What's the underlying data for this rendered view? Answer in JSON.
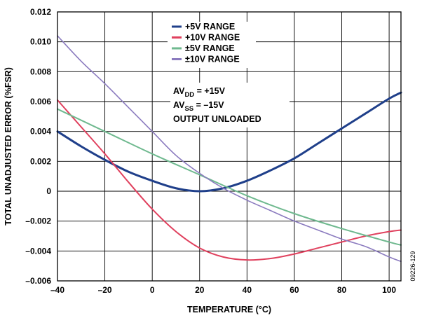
{
  "chart_data": {
    "type": "line",
    "title": "",
    "xlabel": "TEMPERATURE (°C)",
    "ylabel": "TOTAL UNADJUSTED ERROR (%FSR)",
    "xlim": [
      -40,
      105
    ],
    "ylim": [
      -0.006,
      0.012
    ],
    "x_ticks": [
      -40,
      -20,
      0,
      20,
      40,
      60,
      80,
      100
    ],
    "x_tick_labels": [
      "–40",
      "–20",
      "0",
      "20",
      "40",
      "60",
      "80",
      "100"
    ],
    "y_ticks": [
      0.012,
      0.01,
      0.008,
      0.006,
      0.004,
      0.002,
      0,
      -0.002,
      -0.004,
      -0.006
    ],
    "y_tick_labels": [
      "0.012",
      "0.010",
      "0.008",
      "0.006",
      "0.004",
      "0.002",
      "0",
      "–0.002",
      "–0.004",
      "–0.006"
    ],
    "grid": true,
    "legend_position": "top-center",
    "series": [
      {
        "name": "+5V RANGE",
        "color": "#1f3f8a",
        "x": [
          -40,
          -30,
          -20,
          -10,
          0,
          10,
          20,
          30,
          40,
          50,
          60,
          70,
          80,
          90,
          100,
          105
        ],
        "y": [
          0.004,
          0.003,
          0.0021,
          0.0013,
          0.0007,
          0.0002,
          0.0,
          0.0002,
          0.0007,
          0.0014,
          0.0022,
          0.0032,
          0.0042,
          0.0052,
          0.0062,
          0.0066
        ]
      },
      {
        "name": "+10V RANGE",
        "color": "#e0415e",
        "x": [
          -40,
          -30,
          -20,
          -10,
          0,
          10,
          20,
          30,
          40,
          50,
          60,
          70,
          80,
          90,
          100,
          105
        ],
        "y": [
          0.0061,
          0.0043,
          0.0025,
          0.0006,
          -0.0012,
          -0.0027,
          -0.0038,
          -0.0044,
          -0.0046,
          -0.0045,
          -0.0042,
          -0.0038,
          -0.0034,
          -0.003,
          -0.0027,
          -0.0026
        ]
      },
      {
        "name": "±5V RANGE",
        "color": "#6fb98f",
        "x": [
          -40,
          -20,
          0,
          20,
          40,
          60,
          80,
          100,
          105
        ],
        "y": [
          0.0055,
          0.004,
          0.0025,
          0.0011,
          -0.0003,
          -0.0015,
          -0.0025,
          -0.0034,
          -0.0036
        ]
      },
      {
        "name": "±10V RANGE",
        "color": "#8b7bbf",
        "x": [
          -40,
          -30,
          -20,
          -10,
          0,
          10,
          20,
          30,
          40,
          50,
          60,
          70,
          80,
          90,
          100,
          105
        ],
        "y": [
          0.0104,
          0.0087,
          0.0072,
          0.0056,
          0.004,
          0.0024,
          0.0012,
          0.0002,
          -0.0006,
          -0.0013,
          -0.002,
          -0.0026,
          -0.0032,
          -0.0037,
          -0.0044,
          -0.0047
        ]
      }
    ],
    "annotation": {
      "line1": {
        "base": "AV",
        "sub": "DD",
        "rest": " = +15V"
      },
      "line2": {
        "base": "AV",
        "sub": "SS",
        "rest": " = –15V"
      },
      "line3": "OUTPUT UNLOADED"
    },
    "figure_id": "09226-129"
  }
}
